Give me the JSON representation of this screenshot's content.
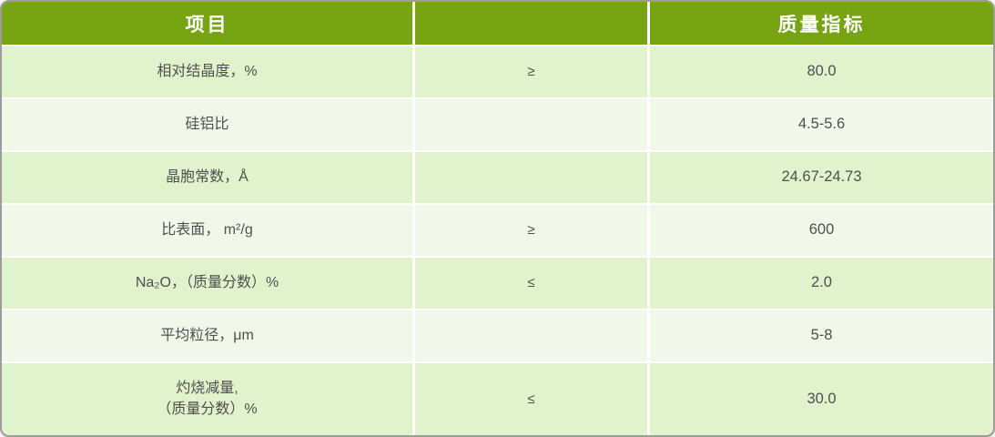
{
  "table": {
    "columns": [
      {
        "label": "项目"
      },
      {
        "label": ""
      },
      {
        "label": "质量指标"
      }
    ],
    "rows": [
      {
        "item": "相对结晶度，%",
        "condition": "≥",
        "value": "80.0"
      },
      {
        "item": "硅铝比",
        "condition": "",
        "value": "4.5-5.6"
      },
      {
        "item": "晶胞常数，Å",
        "condition": "",
        "value": "24.67-24.73"
      },
      {
        "item": "比表面， m²/g",
        "condition": "≥",
        "value": "600"
      },
      {
        "item": "Na₂O，（质量分数）%",
        "condition": "≤",
        "value": "2.0"
      },
      {
        "item": "平均粒径，μm",
        "condition": "",
        "value": "5-8"
      },
      {
        "item": "灼烧减量,\n（质量分数）%",
        "condition": "≤",
        "value": "30.0"
      }
    ]
  },
  "colors": {
    "header_bg": "#76a413",
    "header_text": "#ffffff",
    "row_odd": "#e0f3cd",
    "row_even": "#f0f9e9",
    "grid": "#ffffff",
    "border": "#9c9c9c",
    "text": "#4f4f4f"
  }
}
